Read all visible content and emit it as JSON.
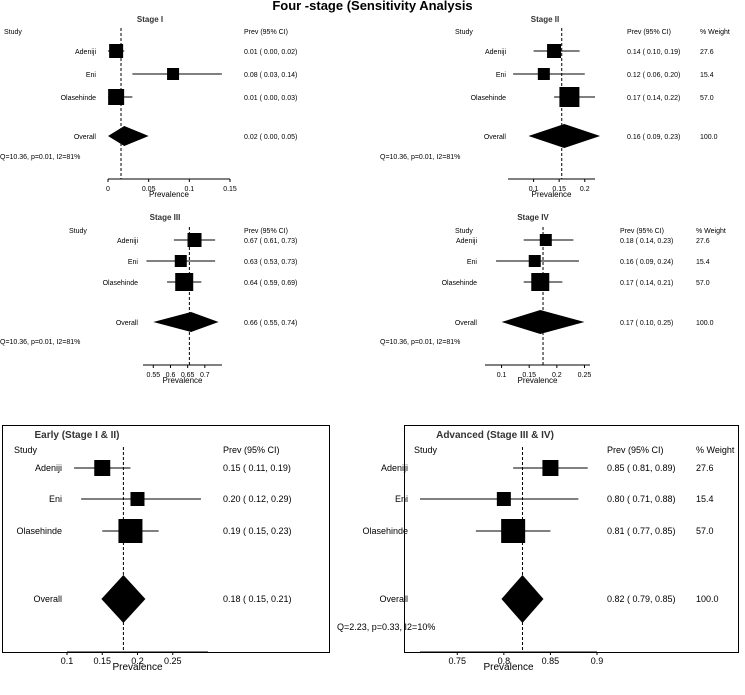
{
  "title": "Four -stage (Sensitivity Analysis",
  "labels": {
    "study": "Study",
    "prev": "Prev (95% CI)",
    "weight": "% Weight",
    "overall": "Overall",
    "xlabel": "Prevalence"
  },
  "chart_data": [
    {
      "id": "stage1",
      "type": "forest",
      "title": "Stage I",
      "xlabel": "Prevalence",
      "ticks": [
        0,
        0.05,
        0.1,
        0.15
      ],
      "tick_labels": [
        "0",
        "0.05",
        "0.1",
        "0.15"
      ],
      "xlim": [
        0,
        0.15
      ],
      "reference": 0.016,
      "studies": [
        {
          "name": "Adeniji",
          "est": 0.01,
          "lo": 0.0,
          "hi": 0.02,
          "ci_text": "0.01  ( 0.00, 0.02)"
        },
        {
          "name": "Eni",
          "est": 0.08,
          "lo": 0.03,
          "hi": 0.14,
          "ci_text": "0.08  ( 0.03, 0.14)"
        },
        {
          "name": "Olasehinde",
          "est": 0.01,
          "lo": 0.0,
          "hi": 0.03,
          "ci_text": "0.01  ( 0.00, 0.03)"
        }
      ],
      "overall": {
        "est": 0.02,
        "lo": 0.0,
        "hi": 0.05,
        "ci_text": "0.02  ( 0.00, 0.05)"
      },
      "stats": "Q=10.36, p=0.01, I2=81%"
    },
    {
      "id": "stage2",
      "type": "forest",
      "title": "Stage II",
      "xlabel": "Prevalence",
      "ticks": [
        0.1,
        0.15,
        0.2
      ],
      "tick_labels": [
        "0.1",
        "0.15",
        "0.2"
      ],
      "xlim": [
        0.05,
        0.22
      ],
      "reference": 0.155,
      "studies": [
        {
          "name": "Adeniji",
          "est": 0.14,
          "lo": 0.1,
          "hi": 0.19,
          "ci_text": "0.14  ( 0.10, 0.19)",
          "weight": "27.6"
        },
        {
          "name": "Eni",
          "est": 0.12,
          "lo": 0.06,
          "hi": 0.2,
          "ci_text": "0.12  ( 0.06, 0.20)",
          "weight": "15.4"
        },
        {
          "name": "Olasehinde",
          "est": 0.17,
          "lo": 0.14,
          "hi": 0.22,
          "ci_text": "0.17  ( 0.14, 0.22)",
          "weight": "57.0"
        }
      ],
      "overall": {
        "est": 0.16,
        "lo": 0.09,
        "hi": 0.23,
        "ci_text": "0.16  ( 0.09, 0.23)",
        "weight": "100.0"
      },
      "stats": "Q=10.36, p=0.01, I2=81%"
    },
    {
      "id": "stage3",
      "type": "forest",
      "title": "Stage III",
      "xlabel": "Prevalence",
      "ticks": [
        0.55,
        0.6,
        0.65,
        0.7
      ],
      "tick_labels": [
        "0.55",
        "0.6",
        "0.65",
        "0.7"
      ],
      "xlim": [
        0.52,
        0.75
      ],
      "reference": 0.655,
      "studies": [
        {
          "name": "Adeniji",
          "est": 0.67,
          "lo": 0.61,
          "hi": 0.73,
          "ci_text": "0.67  ( 0.61, 0.73)"
        },
        {
          "name": "Eni",
          "est": 0.63,
          "lo": 0.53,
          "hi": 0.73,
          "ci_text": "0.63  ( 0.53, 0.73)"
        },
        {
          "name": "Olasehinde",
          "est": 0.64,
          "lo": 0.59,
          "hi": 0.69,
          "ci_text": "0.64  ( 0.59, 0.69)"
        }
      ],
      "overall": {
        "est": 0.66,
        "lo": 0.55,
        "hi": 0.74,
        "ci_text": "0.66  ( 0.55, 0.74)"
      },
      "stats": "Q=10.36, p=0.01, I2=81%"
    },
    {
      "id": "stage4",
      "type": "forest",
      "title": "Stage IV",
      "xlabel": "Prevalence",
      "ticks": [
        0.1,
        0.15,
        0.2,
        0.25
      ],
      "tick_labels": [
        "0.1",
        "0.15",
        "0.2",
        "0.25"
      ],
      "xlim": [
        0.07,
        0.26
      ],
      "reference": 0.175,
      "studies": [
        {
          "name": "Adeniji",
          "est": 0.18,
          "lo": 0.14,
          "hi": 0.23,
          "ci_text": "0.18  ( 0.14, 0.23)",
          "weight": "27.6"
        },
        {
          "name": "Eni",
          "est": 0.16,
          "lo": 0.09,
          "hi": 0.24,
          "ci_text": "0.16  ( 0.09, 0.24)",
          "weight": "15.4"
        },
        {
          "name": "Olasehinde",
          "est": 0.17,
          "lo": 0.14,
          "hi": 0.21,
          "ci_text": "0.17  ( 0.14, 0.21)",
          "weight": "57.0"
        }
      ],
      "overall": {
        "est": 0.17,
        "lo": 0.1,
        "hi": 0.25,
        "ci_text": "0.17  ( 0.10, 0.25)",
        "weight": "100.0"
      },
      "stats": "Q=10.36, p=0.01, I2=81%"
    },
    {
      "id": "early",
      "type": "forest",
      "title": "Early (Stage I & II)",
      "xlabel": "Prevalence",
      "ticks": [
        0.1,
        0.15,
        0.2,
        0.25
      ],
      "tick_labels": [
        "0.1",
        "0.15",
        "0.2",
        "0.25"
      ],
      "xlim": [
        0.1,
        0.3
      ],
      "reference": 0.18,
      "studies": [
        {
          "name": "Adeniji",
          "est": 0.15,
          "lo": 0.11,
          "hi": 0.19,
          "ci_text": "0.15  ( 0.11, 0.19)"
        },
        {
          "name": "Eni",
          "est": 0.2,
          "lo": 0.12,
          "hi": 0.29,
          "ci_text": "0.20  ( 0.12, 0.29)"
        },
        {
          "name": "Olasehinde",
          "est": 0.19,
          "lo": 0.15,
          "hi": 0.23,
          "ci_text": "0.19  ( 0.15, 0.23)"
        }
      ],
      "overall": {
        "est": 0.18,
        "lo": 0.15,
        "hi": 0.21,
        "ci_text": "0.18  ( 0.15, 0.21)"
      },
      "stats": ""
    },
    {
      "id": "advanced",
      "type": "forest",
      "title": "Advanced (Stage III & IV)",
      "xlabel": "Prevalence",
      "ticks": [
        0.75,
        0.8,
        0.85,
        0.9
      ],
      "tick_labels": [
        "0.75",
        "0.8",
        "0.85",
        "0.9"
      ],
      "xlim": [
        0.71,
        0.9
      ],
      "reference": 0.82,
      "studies": [
        {
          "name": "Adeniji",
          "est": 0.85,
          "lo": 0.81,
          "hi": 0.89,
          "ci_text": "0.85  ( 0.81, 0.89)",
          "weight": "27.6"
        },
        {
          "name": "Eni",
          "est": 0.8,
          "lo": 0.71,
          "hi": 0.88,
          "ci_text": "0.80  ( 0.71, 0.88)",
          "weight": "15.4"
        },
        {
          "name": "Olasehinde",
          "est": 0.81,
          "lo": 0.77,
          "hi": 0.85,
          "ci_text": "0.81  ( 0.77, 0.85)",
          "weight": "57.0"
        }
      ],
      "overall": {
        "est": 0.82,
        "lo": 0.79,
        "hi": 0.85,
        "ci_text": "0.82  ( 0.79, 0.85)",
        "weight": "100.0"
      },
      "stats": "Q=2.23, p=0.33, I2=10%"
    }
  ]
}
